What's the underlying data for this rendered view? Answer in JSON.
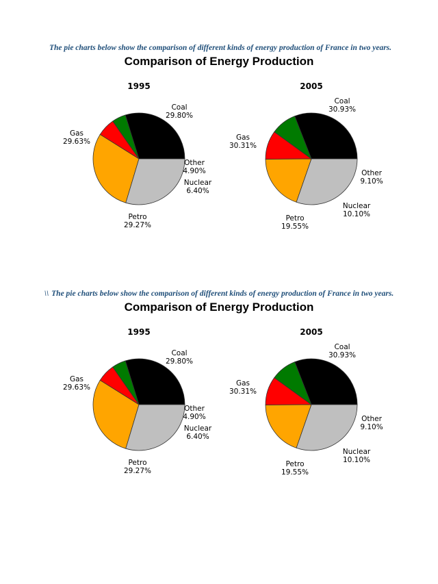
{
  "captions": [
    {
      "prefix": "",
      "text": "The pie charts below show the comparison of different kinds of energy production of France in two years."
    },
    {
      "prefix": "\\\\",
      "text": "The pie charts below show the comparison of different kinds of energy production of France in two years."
    }
  ],
  "colors": {
    "Coal": "#000000",
    "Other": "#007a00",
    "Nuclear": "#ff0000",
    "Petro": "#ffa500",
    "Gas": "#bfbfbf"
  },
  "chart_data": [
    {
      "type": "pie",
      "title": "Comparison of Energy Production",
      "pies": [
        {
          "year": "1995",
          "slices": [
            {
              "label": "Coal",
              "value": 29.8,
              "display": "29.80%"
            },
            {
              "label": "Other",
              "value": 4.9,
              "display": "4.90%"
            },
            {
              "label": "Nuclear",
              "value": 6.4,
              "display": "6.40%"
            },
            {
              "label": "Petro",
              "value": 29.27,
              "display": "29.27%"
            },
            {
              "label": "Gas",
              "value": 29.63,
              "display": "29.63%"
            }
          ]
        },
        {
          "year": "2005",
          "slices": [
            {
              "label": "Coal",
              "value": 30.93,
              "display": "30.93%"
            },
            {
              "label": "Other",
              "value": 9.1,
              "display": "9.10%"
            },
            {
              "label": "Nuclear",
              "value": 10.1,
              "display": "10.10%"
            },
            {
              "label": "Petro",
              "value": 19.55,
              "display": "19.55%"
            },
            {
              "label": "Gas",
              "value": 30.31,
              "display": "30.31%"
            }
          ]
        }
      ]
    },
    {
      "type": "pie",
      "title": "Comparison of Energy Production",
      "pies": [
        {
          "year": "1995",
          "slices": [
            {
              "label": "Coal",
              "value": 29.8,
              "display": "29.80%"
            },
            {
              "label": "Other",
              "value": 4.9,
              "display": "4.90%"
            },
            {
              "label": "Nuclear",
              "value": 6.4,
              "display": "6.40%"
            },
            {
              "label": "Petro",
              "value": 29.27,
              "display": "29.27%"
            },
            {
              "label": "Gas",
              "value": 29.63,
              "display": "29.63%"
            }
          ]
        },
        {
          "year": "2005",
          "slices": [
            {
              "label": "Coal",
              "value": 30.93,
              "display": "30.93%"
            },
            {
              "label": "Other",
              "value": 9.1,
              "display": "9.10%"
            },
            {
              "label": "Nuclear",
              "value": 10.1,
              "display": "10.10%"
            },
            {
              "label": "Petro",
              "value": 19.55,
              "display": "19.55%"
            },
            {
              "label": "Gas",
              "value": 30.31,
              "display": "30.31%"
            }
          ]
        }
      ]
    }
  ]
}
